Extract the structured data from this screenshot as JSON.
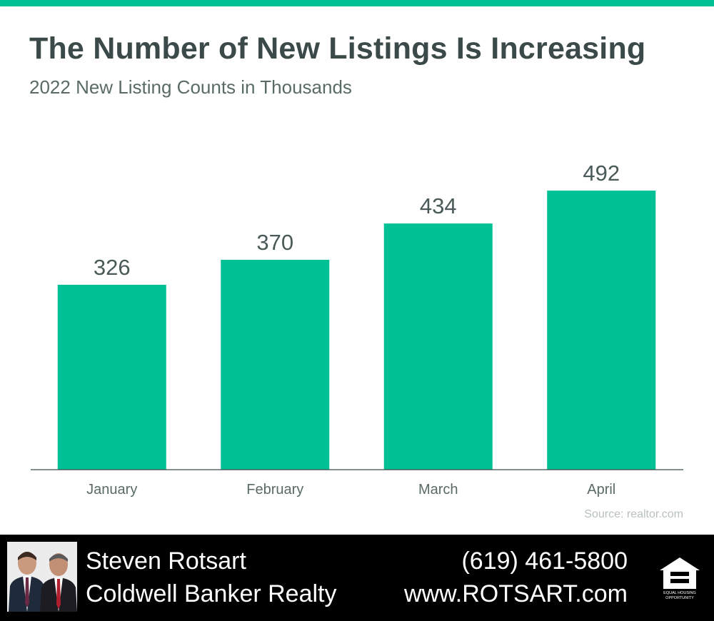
{
  "header": {
    "title": "The Number of New Listings Is Increasing",
    "subtitle": "2022 New Listing Counts in Thousands"
  },
  "source": "Source: realtor.com",
  "colors": {
    "accent": "#00c096",
    "title": "#3b4a48",
    "text": "#5a6a67",
    "footer_bg": "#000000"
  },
  "chart_data": {
    "type": "bar",
    "title": "The Number of New Listings Is Increasing",
    "subtitle": "2022 New Listing Counts in Thousands",
    "categories": [
      "January",
      "February",
      "March",
      "April"
    ],
    "values": [
      326,
      370,
      434,
      492
    ],
    "ylim": [
      0,
      560
    ],
    "grid": false,
    "data_labels": true,
    "bar_color": "#00c096"
  },
  "footer": {
    "agent_name": "Steven Rotsart",
    "company": "Coldwell Banker Realty",
    "phone": "(619) 461-5800",
    "website": "www.ROTSART.com",
    "logo_text_1": "EQUAL HOUSING",
    "logo_text_2": "OPPORTUNITY",
    "logo_icon": "equal-housing-icon",
    "photo_icon": "agent-photo"
  }
}
